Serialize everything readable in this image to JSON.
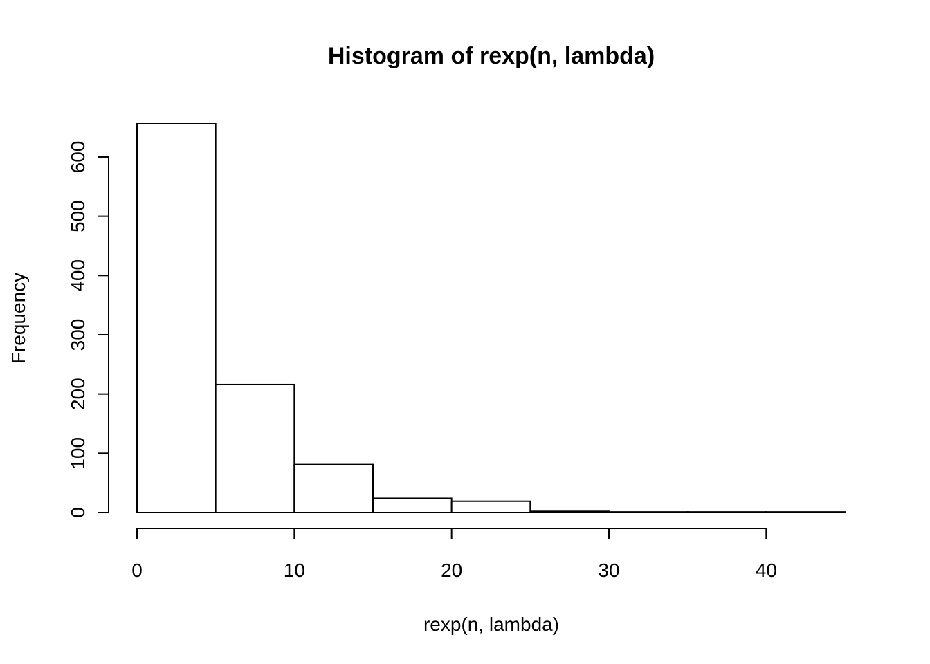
{
  "chart_data": {
    "type": "bar",
    "title": "Histogram of rexp(n, lambda)",
    "xlabel": "rexp(n, lambda)",
    "ylabel": "Frequency",
    "bins": [
      {
        "start": 0,
        "end": 5,
        "count": 656
      },
      {
        "start": 5,
        "end": 10,
        "count": 216
      },
      {
        "start": 10,
        "end": 15,
        "count": 81
      },
      {
        "start": 15,
        "end": 20,
        "count": 24
      },
      {
        "start": 20,
        "end": 25,
        "count": 19
      },
      {
        "start": 25,
        "end": 30,
        "count": 2
      },
      {
        "start": 30,
        "end": 35,
        "count": 1
      },
      {
        "start": 35,
        "end": 40,
        "count": 1
      },
      {
        "start": 40,
        "end": 45,
        "count": 1
      }
    ],
    "xlim": [
      0,
      45
    ],
    "ylim": [
      0,
      656
    ],
    "x_ticks": [
      "0",
      "10",
      "20",
      "30",
      "40"
    ],
    "y_ticks": [
      "0",
      "100",
      "200",
      "300",
      "400",
      "500",
      "600"
    ],
    "grid": false,
    "legend": "none",
    "colors": {
      "bar_fill": "#ffffff",
      "bar_stroke": "#000000"
    }
  }
}
